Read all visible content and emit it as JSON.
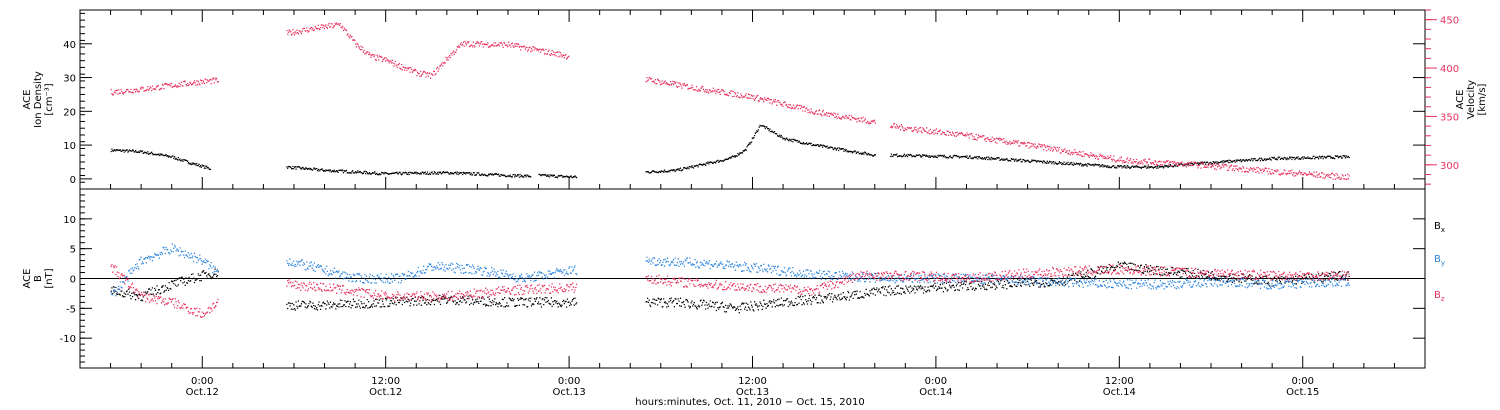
{
  "chart_data": [
    {
      "type": "scatter",
      "panel": "plasma",
      "y_left": {
        "label_lines": [
          "ACE",
          "Ion Density",
          "[cm⁻³]"
        ],
        "ylim": [
          -3,
          50
        ],
        "ticks": [
          0,
          10,
          20,
          30,
          40
        ]
      },
      "y_right": {
        "label_lines": [
          "ACE",
          "Velocity",
          "[km/s]"
        ],
        "ylim": [
          275,
          460
        ],
        "ticks": [
          300,
          350,
          400,
          450
        ],
        "color": "#e8305e"
      },
      "series": [
        {
          "axis": "left",
          "color": "#000000",
          "segments": [
            {
              "t": [
                -6,
                -4,
                -2,
                -1,
                0.5
              ],
              "y": [
                8.5,
                8,
                6.5,
                5,
                3
              ]
            },
            {
              "t": [
                5.5,
                8,
                12,
                16,
                20,
                21.5
              ],
              "y": [
                3.5,
                2.5,
                1.5,
                1.8,
                1,
                0.8
              ]
            },
            {
              "t": [
                22,
                24.5
              ],
              "y": [
                1,
                0.5
              ]
            },
            {
              "t": [
                29,
                31,
                33,
                34.5,
                35.5,
                36,
                36.5,
                38,
                40,
                42,
                44
              ],
              "y": [
                2,
                2.5,
                4.5,
                6,
                8.5,
                12,
                16,
                12,
                10,
                8.5,
                7
              ]
            },
            {
              "t": [
                45,
                50,
                55,
                60,
                62.5,
                65,
                70,
                75
              ],
              "y": [
                7,
                6.5,
                5,
                3.5,
                3.5,
                4.5,
                6,
                6.5
              ]
            }
          ]
        },
        {
          "axis": "right",
          "color": "#e8305e",
          "segments": [
            {
              "t": [
                -6,
                -4,
                -2,
                0,
                1
              ],
              "y": [
                375,
                378,
                382,
                386,
                387
              ]
            },
            {
              "t": [
                5.5,
                7,
                9,
                10,
                11,
                12,
                14,
                15,
                16,
                17,
                20,
                22,
                24
              ],
              "y": [
                436,
                440,
                445,
                425,
                412,
                408,
                395,
                392,
                410,
                425,
                424,
                418,
                412
              ]
            },
            {
              "t": [
                29,
                32,
                36,
                40,
                44
              ],
              "y": [
                388,
                380,
                370,
                355,
                344
              ]
            },
            {
              "t": [
                45,
                50,
                52,
                55,
                60,
                65,
                70,
                75
              ],
              "y": [
                340,
                330,
                325,
                318,
                305,
                300,
                293,
                287
              ]
            }
          ]
        }
      ]
    },
    {
      "type": "scatter",
      "panel": "magnetic-field",
      "y_left": {
        "label_lines": [
          "ACE",
          "B",
          "[nT]"
        ],
        "ylim": [
          -15,
          15
        ],
        "ticks": [
          -10,
          -5,
          0,
          5,
          10
        ]
      },
      "legend": [
        "B",
        "B",
        "B"
      ],
      "legend_subscripts": [
        "x",
        "y",
        "z"
      ],
      "series": [
        {
          "color": "#000000",
          "segments": [
            {
              "t": [
                -6,
                -4,
                -2,
                0,
                1
              ],
              "y": [
                -2,
                -3,
                -1,
                0.5,
                1
              ]
            },
            {
              "t": [
                5.5,
                8,
                12,
                16,
                20,
                24.5
              ],
              "y": [
                -4.5,
                -4.5,
                -4,
                -3.5,
                -4,
                -4
              ]
            },
            {
              "t": [
                29,
                31,
                35,
                38,
                42,
                45,
                48,
                52,
                56,
                60,
                62,
                66,
                70,
                75
              ],
              "y": [
                -4,
                -4,
                -5,
                -4,
                -3,
                -2,
                -1.5,
                -1,
                -0.5,
                2,
                1.5,
                0.5,
                -0.5,
                0.5
              ]
            }
          ]
        },
        {
          "color": "#2e86de",
          "segments": [
            {
              "t": [
                -6,
                -4,
                -2,
                0,
                1
              ],
              "y": [
                -3,
                3,
                5,
                3,
                1
              ]
            },
            {
              "t": [
                5.5,
                7,
                10,
                13,
                15,
                18,
                21,
                24.5
              ],
              "y": [
                3,
                2,
                0,
                0,
                2,
                1.5,
                0,
                1.5
              ]
            },
            {
              "t": [
                29,
                33,
                37,
                41,
                45,
                50,
                55,
                60,
                63,
                67,
                70,
                75
              ],
              "y": [
                3,
                2.5,
                1.5,
                0.5,
                0,
                0,
                -0.5,
                -1,
                -1,
                -0.5,
                -1,
                -0.5
              ]
            }
          ]
        },
        {
          "color": "#e8305e",
          "segments": [
            {
              "t": [
                -6,
                -4,
                -2,
                0,
                1
              ],
              "y": [
                2,
                -3,
                -4,
                -6,
                -4
              ]
            },
            {
              "t": [
                5.5,
                8,
                12,
                16,
                20,
                24.5
              ],
              "y": [
                -1,
                -1.5,
                -3,
                -3,
                -2,
                -1.5
              ]
            },
            {
              "t": [
                29,
                33,
                36,
                40,
                43,
                46,
                50,
                55,
                60,
                65,
                70,
                75
              ],
              "y": [
                0,
                -1,
                -1.5,
                -2,
                0.5,
                0.5,
                0,
                1,
                1.5,
                1,
                0.5,
                0.5
              ]
            }
          ]
        }
      ]
    }
  ],
  "x_axis": {
    "range": [
      -8,
      80
    ],
    "major_ticks": [
      0,
      12,
      24,
      36,
      48,
      60,
      72
    ],
    "tick_labels": [
      [
        "0:00",
        "Oct.12"
      ],
      [
        "12:00",
        "Oct.12"
      ],
      [
        "0:00",
        "Oct.13"
      ],
      [
        "12:00",
        "Oct.13"
      ],
      [
        "0:00",
        "Oct.14"
      ],
      [
        "12:00",
        "Oct.14"
      ],
      [
        "0:00",
        "Oct.15"
      ]
    ],
    "title": "hours:minutes, Oct. 11, 2010 − Oct. 15, 2010"
  }
}
